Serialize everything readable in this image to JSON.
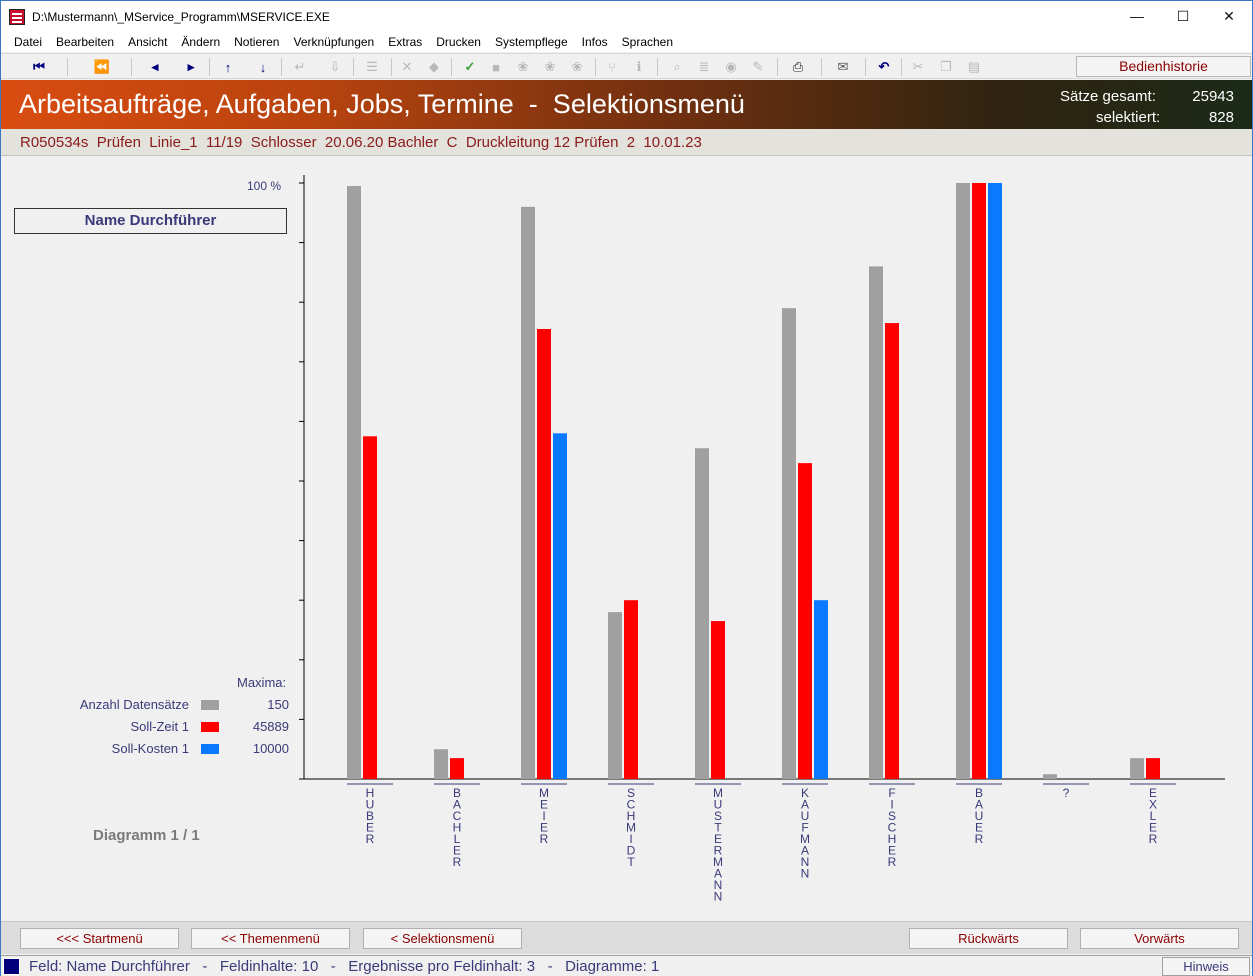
{
  "window": {
    "title": "D:\\Mustermann\\_MService_Programm\\MSERVICE.EXE",
    "minimize": "—",
    "maximize": "☐",
    "close": "✕"
  },
  "menu": [
    "Datei",
    "Bearbeiten",
    "Ansicht",
    "Ändern",
    "Notieren",
    "Verknüpfungen",
    "Extras",
    "Drucken",
    "Systempflege",
    "Infos",
    "Sprachen"
  ],
  "toolbar": {
    "history_label": "Bedienhistorie"
  },
  "header": {
    "title": "Arbeitsaufträge, Aufgaben, Jobs, Termine  -  Selektionsmenü",
    "total_label": "Sätze gesamt:",
    "total_value": "25943",
    "selected_label": "selektiert:",
    "selected_value": "828"
  },
  "record_line": "R050534s  Prüfen  Linie_1  11/19  Schlosser  20.06.20 Bachler  C  Druckleitung 12 Prüfen  2  10.01.23",
  "field_name": "Name Durchführer",
  "legend": {
    "maxima_label": "Maxima:",
    "items": [
      {
        "name": "Anzahl Datensätze",
        "max": "150",
        "color": "#a0a0a0"
      },
      {
        "name": "Soll-Zeit 1",
        "max": "45889",
        "color": "#ff0000"
      },
      {
        "name": "Soll-Kosten 1",
        "max": "10000",
        "color": "#0a78ff"
      }
    ]
  },
  "diagram_label": "Diagramm 1 / 1",
  "chart_data": {
    "type": "bar",
    "ytop_label": "100 %",
    "ylim": [
      0,
      100
    ],
    "categories": [
      "HUBER",
      "BACHLER",
      "MEIER",
      "SCHMIDT",
      "MUSTERMANN",
      "KAUFMANN",
      "FISCHER",
      "BAUER",
      "?",
      "EXLER"
    ],
    "series": [
      {
        "name": "Anzahl Datensätze",
        "color": "#a0a0a0",
        "values": [
          99.5,
          5,
          96,
          28,
          55.5,
          79,
          86,
          100,
          0.8,
          3.5
        ]
      },
      {
        "name": "Soll-Zeit 1",
        "color": "#ff0000",
        "values": [
          57.5,
          3.5,
          75.5,
          30,
          26.5,
          53,
          76.5,
          100,
          0,
          3.5
        ]
      },
      {
        "name": "Soll-Kosten 1",
        "color": "#0a78ff",
        "values": [
          0,
          0,
          58,
          0,
          0,
          30,
          0,
          100,
          0,
          0
        ]
      }
    ]
  },
  "nav_buttons": {
    "start": "<<< Startmenü",
    "theme": "<< Themenmenü",
    "selection": "< Selektionsmenü",
    "back": "Rückwärts",
    "forward": "Vorwärts"
  },
  "status": {
    "text": "Feld: Name Durchführer   -   Feldinhalte: 10   -   Ergebnisse pro Feldinhalt: 3   -   Diagramme: 1",
    "hint": "Hinweis"
  },
  "toolbar_icons": [
    "first-record-icon",
    "page-back-icon",
    "prev-icon",
    "next-icon",
    "up-arrow-icon",
    "down-arrow-icon",
    "enter-icon",
    "import-icon",
    "list-icon",
    "delete-icon",
    "erase-icon",
    "confirm-icon",
    "save-icon",
    "print-icon",
    "mail-icon",
    "undo-icon",
    "cut-icon",
    "copy-icon",
    "paste-icon"
  ]
}
